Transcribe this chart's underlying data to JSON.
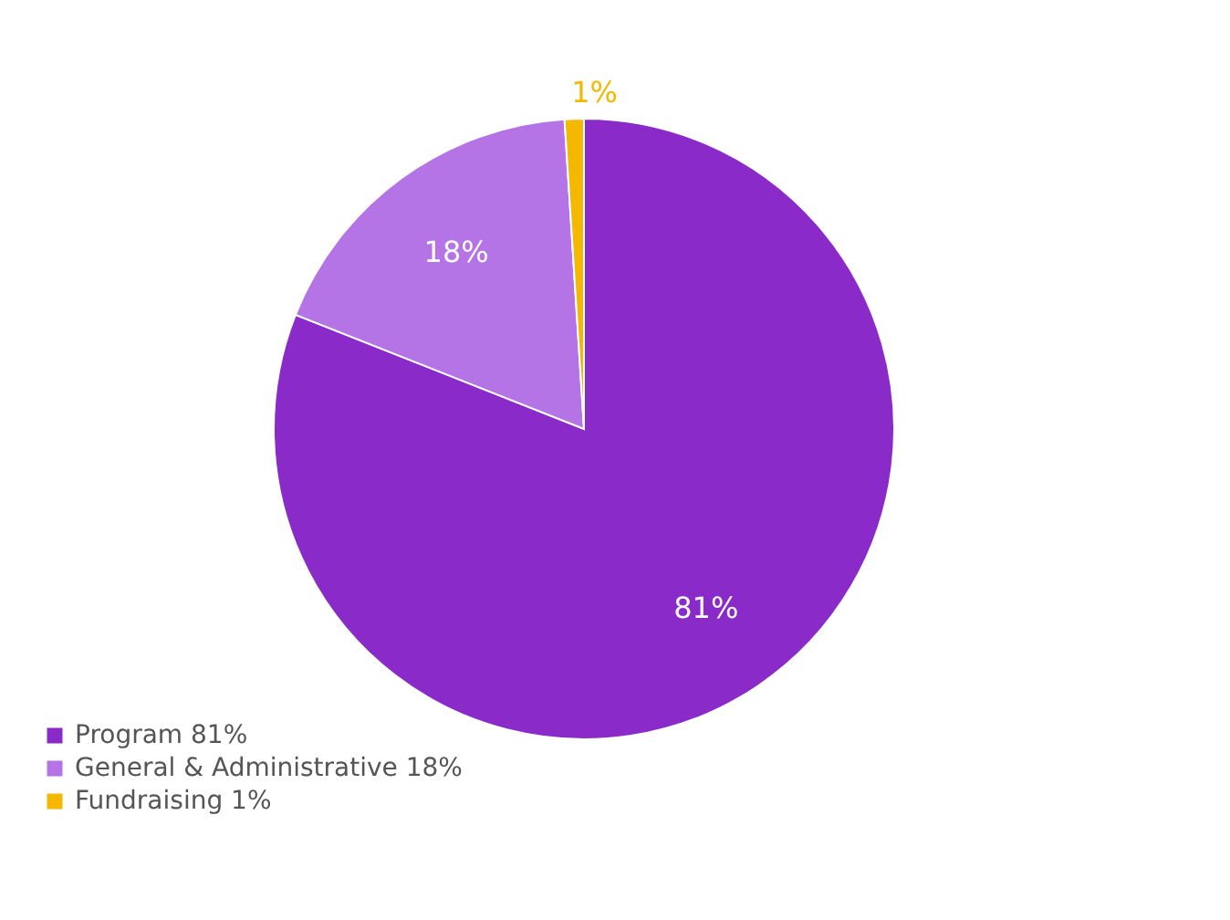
{
  "chart_data": {
    "type": "pie",
    "categories": [
      "Program 81%",
      "General & Administrative 18%",
      "Fundraising 1%"
    ],
    "values": [
      81,
      18,
      1
    ],
    "colors": [
      "#8a2bc9",
      "#b574e6",
      "#f5b800"
    ],
    "value_labels": [
      "81%",
      "18%",
      "1%"
    ],
    "legend": "bottom left"
  }
}
